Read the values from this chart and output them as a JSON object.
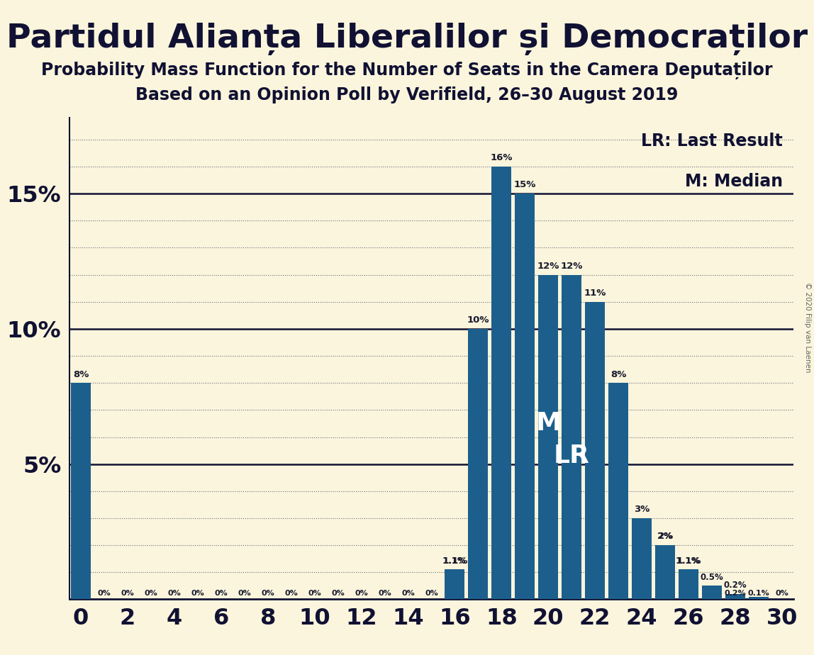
{
  "title": "Partidul Alianța Liberalilor și Democraților",
  "subtitle1": "Probability Mass Function for the Number of Seats in the Camera Deputaților",
  "subtitle2": "Based on an Opinion Poll by Verifield, 26–30 August 2019",
  "background_color": "#FAF5DC",
  "bar_color": "#1C5F8C",
  "categories": [
    0,
    1,
    2,
    3,
    4,
    5,
    6,
    7,
    8,
    9,
    10,
    11,
    12,
    13,
    14,
    15,
    16,
    17,
    18,
    19,
    20,
    21,
    22,
    23,
    24,
    25,
    26,
    27,
    28,
    29,
    30
  ],
  "values": [
    0.08,
    0.0,
    0.0,
    0.0,
    0.0,
    0.0,
    0.0,
    0.0,
    0.0,
    0.0,
    0.0,
    0.0,
    0.0,
    0.0,
    0.0,
    0.0,
    0.011,
    0.1,
    0.16,
    0.15,
    0.12,
    0.12,
    0.11,
    0.08,
    0.03,
    0.02,
    0.011,
    0.005,
    0.002,
    0.001,
    0.0
  ],
  "labels": [
    "8%",
    "0%",
    "0%",
    "0%",
    "0%",
    "0%",
    "0%",
    "0%",
    "0%",
    "0%",
    "0%",
    "0%",
    "0%",
    "0%",
    "0%",
    "0%",
    "1.1%",
    "10%",
    "16%",
    "15%",
    "12%",
    "12%",
    "11%",
    "8%",
    "3%",
    "2%",
    "1.1%",
    "0.5%",
    "0.2%",
    "0.1%",
    "0%"
  ],
  "median_seat": 20,
  "lr_seat": 21,
  "legend_lr": "LR: Last Result",
  "legend_m": "M: Median",
  "copyright": "© 2020 Filip van Laenen",
  "ytick_vals": [
    0.0,
    0.05,
    0.1,
    0.15
  ],
  "ytick_labels": [
    "",
    "5%",
    "10%",
    "15%"
  ],
  "xlim": [
    -0.5,
    30.5
  ],
  "ylim": [
    0,
    0.178
  ],
  "title_fontsize": 34,
  "subtitle_fontsize": 17,
  "bar_width": 0.85
}
